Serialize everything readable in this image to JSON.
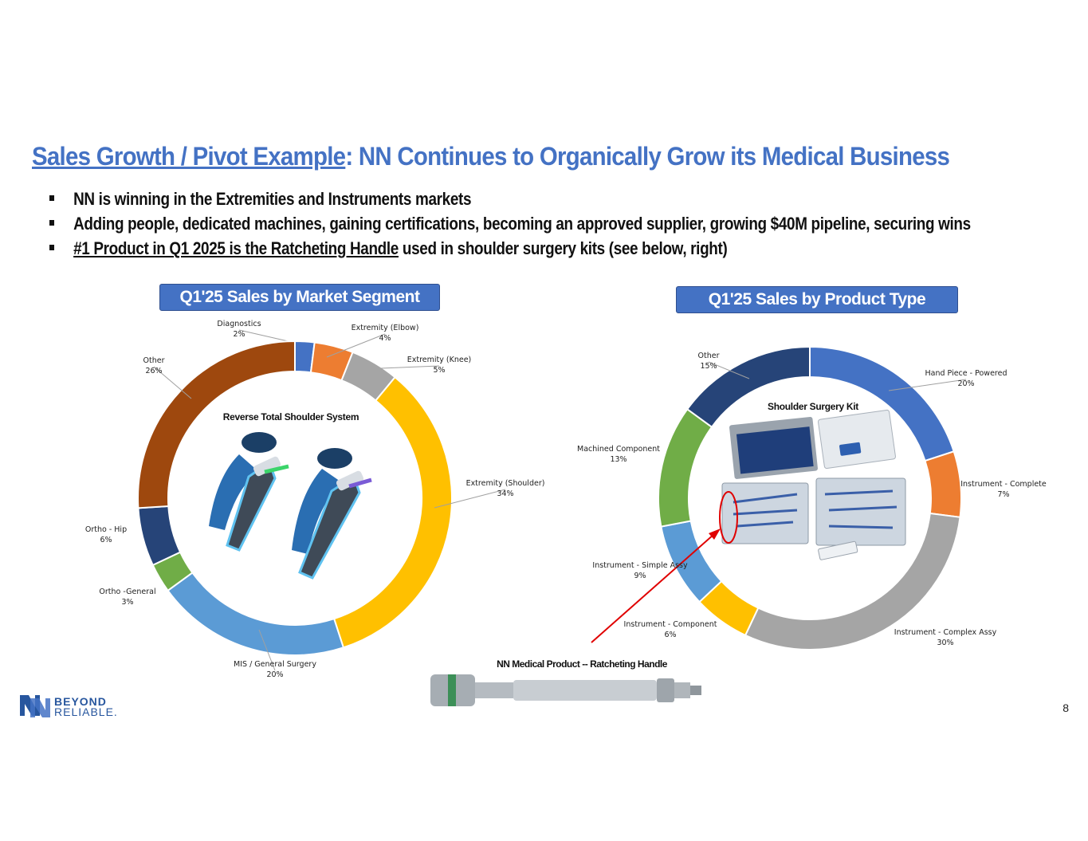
{
  "slide": {
    "title_underlined": "Sales Growth / Pivot Example",
    "title_rest": ": NN Continues to Organically Grow its Medical Business",
    "bullets": [
      {
        "underlined": "",
        "text": "NN is winning in the Extremities and Instruments markets"
      },
      {
        "underlined": "",
        "text": "Adding people, dedicated machines, gaining certifications, becoming an approved supplier, growing $40M pipeline, securing wins"
      },
      {
        "underlined": "#1 Product in Q1 2025 is the Ratcheting Handle",
        "text": " used in shoulder surgery kits (see below, right)"
      }
    ],
    "page_number": "8",
    "logo": {
      "line1": "BEYOND",
      "line2": "RELIABLE."
    },
    "handle_caption": "NN Medical Product -- Ratcheting Handle"
  },
  "colors": {
    "title": "#4472c4",
    "header_bg": "#4472c4",
    "arrow": "#e00000"
  },
  "chart_data": [
    {
      "type": "pie",
      "title": "Q1'25 Sales by Market Segment",
      "center_caption": "Reverse Total Shoulder System",
      "series": [
        {
          "name": "Diagnostics",
          "value": 2,
          "label": "2%",
          "color": "#4472c4"
        },
        {
          "name": "Extremity (Elbow)",
          "value": 4,
          "label": "4%",
          "color": "#ed7d31"
        },
        {
          "name": "Extremity (Knee)",
          "value": 5,
          "label": "5%",
          "color": "#a5a5a5"
        },
        {
          "name": "Extremity (Shoulder)",
          "value": 34,
          "label": "34%",
          "color": "#ffc000"
        },
        {
          "name": "MIS / General Surgery",
          "value": 20,
          "label": "20%",
          "color": "#5b9bd5"
        },
        {
          "name": "Ortho -General",
          "value": 3,
          "label": "3%",
          "color": "#70ad47"
        },
        {
          "name": "Ortho - Hip",
          "value": 6,
          "label": "6%",
          "color": "#264478"
        },
        {
          "name": "Other",
          "value": 26,
          "label": "26%",
          "color": "#9e480e"
        }
      ]
    },
    {
      "type": "pie",
      "title": "Q1'25 Sales by Product Type",
      "center_caption": "Shoulder Surgery Kit",
      "series": [
        {
          "name": "Hand Piece - Powered",
          "value": 20,
          "label": "20%",
          "color": "#4472c4"
        },
        {
          "name": "Instrument - Complete",
          "value": 7,
          "label": "7%",
          "color": "#ed7d31"
        },
        {
          "name": "Instrument - Complex Assy",
          "value": 30,
          "label": "30%",
          "color": "#a5a5a5"
        },
        {
          "name": "Instrument - Component",
          "value": 6,
          "label": "6%",
          "color": "#ffc000"
        },
        {
          "name": "Instrument - Simple Assy",
          "value": 9,
          "label": "9%",
          "color": "#5b9bd5"
        },
        {
          "name": "Machined Component",
          "value": 13,
          "label": "13%",
          "color": "#70ad47"
        },
        {
          "name": "Other",
          "value": 15,
          "label": "15%",
          "color": "#264478"
        }
      ]
    }
  ]
}
